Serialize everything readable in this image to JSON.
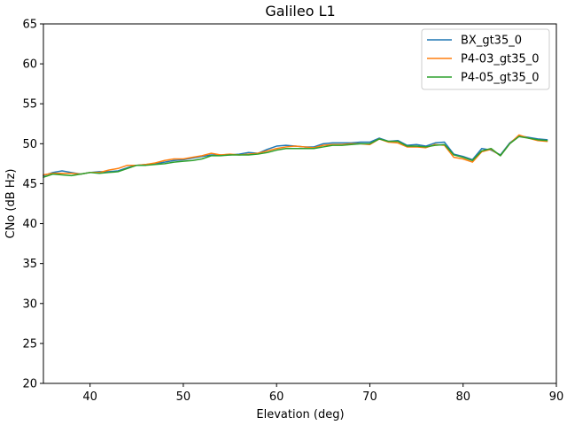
{
  "chart_data": {
    "type": "line",
    "title": "Galileo L1",
    "xlabel": "Elevation (deg)",
    "ylabel": "CNo (dB Hz)",
    "xlim": [
      35,
      90
    ],
    "ylim": [
      20,
      65
    ],
    "xticks": [
      40,
      50,
      60,
      70,
      80,
      90
    ],
    "yticks": [
      20,
      25,
      30,
      35,
      40,
      45,
      50,
      55,
      60,
      65
    ],
    "grid": false,
    "legend_position": "top-right",
    "series": [
      {
        "name": "BX_gt35_0",
        "color": "#1f77b4",
        "x": [
          35,
          36,
          37,
          38,
          39,
          40,
          41,
          42,
          43,
          44,
          45,
          46,
          47,
          48,
          49,
          50,
          51,
          52,
          53,
          54,
          55,
          56,
          57,
          58,
          59,
          60,
          61,
          62,
          63,
          64,
          65,
          66,
          67,
          68,
          69,
          70,
          71,
          72,
          73,
          74,
          75,
          76,
          77,
          78,
          79,
          80,
          81,
          82,
          83,
          84,
          85,
          86,
          87,
          88,
          89
        ],
        "y": [
          46.0,
          46.4,
          46.6,
          46.4,
          46.2,
          46.4,
          46.5,
          46.5,
          46.6,
          47.0,
          47.3,
          47.4,
          47.5,
          47.7,
          47.9,
          48.0,
          48.2,
          48.4,
          48.6,
          48.6,
          48.6,
          48.7,
          48.9,
          48.8,
          49.3,
          49.7,
          49.8,
          49.7,
          49.6,
          49.6,
          50.0,
          50.1,
          50.1,
          50.1,
          50.2,
          50.2,
          50.7,
          50.3,
          50.4,
          49.8,
          49.9,
          49.7,
          50.1,
          50.2,
          48.7,
          48.4,
          48.0,
          49.4,
          49.2,
          48.6,
          50.1,
          51.0,
          50.8,
          50.6,
          50.5
        ]
      },
      {
        "name": "P4-03_gt35_0",
        "color": "#ff7f0e",
        "x": [
          35,
          36,
          37,
          38,
          39,
          40,
          41,
          42,
          43,
          44,
          45,
          46,
          47,
          48,
          49,
          50,
          51,
          52,
          53,
          54,
          55,
          56,
          57,
          58,
          59,
          60,
          61,
          62,
          63,
          64,
          65,
          66,
          67,
          68,
          69,
          70,
          71,
          72,
          73,
          74,
          75,
          76,
          77,
          78,
          79,
          80,
          81,
          82,
          83,
          84,
          85,
          86,
          87,
          88,
          89
        ],
        "y": [
          46.1,
          46.3,
          46.3,
          46.3,
          46.2,
          46.4,
          46.4,
          46.7,
          46.9,
          47.3,
          47.3,
          47.4,
          47.6,
          47.9,
          48.1,
          48.1,
          48.3,
          48.5,
          48.8,
          48.6,
          48.7,
          48.6,
          48.7,
          48.8,
          49.1,
          49.4,
          49.6,
          49.7,
          49.6,
          49.5,
          49.8,
          49.9,
          49.9,
          50.0,
          50.0,
          49.9,
          50.6,
          50.2,
          50.1,
          49.6,
          49.6,
          49.5,
          49.9,
          49.8,
          48.3,
          48.1,
          47.7,
          49.0,
          49.3,
          48.5,
          50.0,
          51.1,
          50.7,
          50.4,
          50.3
        ]
      },
      {
        "name": "P4-05_gt35_0",
        "color": "#2ca02c",
        "x": [
          35,
          36,
          37,
          38,
          39,
          40,
          41,
          42,
          43,
          44,
          45,
          46,
          47,
          48,
          49,
          50,
          51,
          52,
          53,
          54,
          55,
          56,
          57,
          58,
          59,
          60,
          61,
          62,
          63,
          64,
          65,
          66,
          67,
          68,
          69,
          70,
          71,
          72,
          73,
          74,
          75,
          76,
          77,
          78,
          79,
          80,
          81,
          82,
          83,
          84,
          85,
          86,
          87,
          88,
          89
        ],
        "y": [
          45.8,
          46.2,
          46.1,
          46.0,
          46.2,
          46.4,
          46.3,
          46.4,
          46.5,
          46.9,
          47.3,
          47.3,
          47.4,
          47.5,
          47.7,
          47.8,
          47.9,
          48.1,
          48.5,
          48.5,
          48.6,
          48.6,
          48.6,
          48.7,
          48.9,
          49.2,
          49.4,
          49.4,
          49.4,
          49.4,
          49.6,
          49.8,
          49.8,
          49.9,
          50.0,
          50.0,
          50.6,
          50.3,
          50.3,
          49.7,
          49.7,
          49.6,
          49.8,
          49.9,
          48.6,
          48.3,
          47.9,
          49.1,
          49.4,
          48.5,
          50.0,
          50.9,
          50.7,
          50.5,
          50.4
        ]
      }
    ]
  }
}
